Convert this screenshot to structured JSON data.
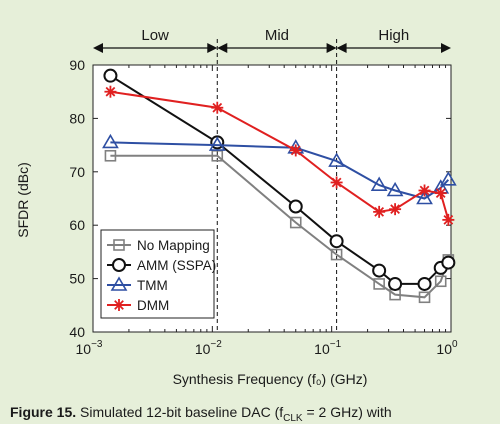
{
  "chart_data": {
    "type": "line",
    "xlabel": "Synthesis Frequency (f₀) (GHz)",
    "ylabel": "SFDR (dBc)",
    "xscale": "log",
    "xlim": [
      0.001,
      1
    ],
    "ylim": [
      40,
      90
    ],
    "grid": false,
    "legend_position": "bottom-left",
    "xticks": [
      {
        "value": 0.001,
        "base": "10",
        "exp": "−3"
      },
      {
        "value": 0.01,
        "base": "10",
        "exp": "−2"
      },
      {
        "value": 0.1,
        "base": "10",
        "exp": "−1"
      },
      {
        "value": 1,
        "base": "10",
        "exp": "0"
      }
    ],
    "yticks": [
      40,
      50,
      60,
      70,
      80,
      90
    ],
    "regions": [
      {
        "label": "Low",
        "from": 0.001,
        "to": 0.011
      },
      {
        "label": "Mid",
        "from": 0.011,
        "to": 0.11
      },
      {
        "label": "High",
        "from": 0.11,
        "to": 1
      }
    ],
    "series": [
      {
        "name": "No Mapping",
        "color": "#808080",
        "marker": "square",
        "x": [
          0.0014,
          0.011,
          0.05,
          0.11,
          0.25,
          0.34,
          0.6,
          0.82,
          0.95
        ],
        "y": [
          73,
          73,
          60.5,
          54.5,
          49,
          47,
          46.5,
          49.5,
          53.5
        ]
      },
      {
        "name": "AMM (SSPA)",
        "color": "#111111",
        "marker": "circle",
        "x": [
          0.0014,
          0.011,
          0.05,
          0.11,
          0.25,
          0.34,
          0.6,
          0.82,
          0.95
        ],
        "y": [
          88,
          75.5,
          63.5,
          57,
          51.5,
          49,
          49,
          52,
          53
        ]
      },
      {
        "name": "TMM",
        "color": "#2e4fa3",
        "marker": "triangle",
        "x": [
          0.0014,
          0.011,
          0.05,
          0.11,
          0.25,
          0.34,
          0.6,
          0.82,
          0.95
        ],
        "y": [
          75.5,
          75,
          74.5,
          72,
          67.5,
          66.5,
          65,
          67,
          68.5
        ]
      },
      {
        "name": "DMM",
        "color": "#e02020",
        "marker": "star",
        "x": [
          0.0014,
          0.011,
          0.05,
          0.11,
          0.25,
          0.34,
          0.6,
          0.82,
          0.95
        ],
        "y": [
          85,
          82,
          74,
          68,
          62.5,
          63,
          66.5,
          66,
          61
        ]
      }
    ]
  },
  "caption": {
    "label": "Figure 15.",
    "text": "Simulated 12-bit baseline DAC (f",
    "sub": "CLK",
    "rest": " = 2 GHz) with"
  }
}
